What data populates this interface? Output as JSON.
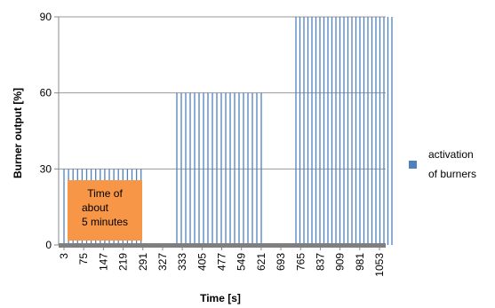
{
  "chart_data": {
    "type": "bar",
    "xlabel": "Time [s]",
    "ylabel": "Burner output [%]",
    "ylim": [
      0,
      90
    ],
    "yticks": [
      "0",
      "30",
      "60",
      "90"
    ],
    "x_tick_labels": [
      "3",
      "75",
      "147",
      "219",
      "291",
      "327",
      "333",
      "405",
      "477",
      "549",
      "621",
      "693",
      "765",
      "837",
      "909",
      "981",
      "1053"
    ],
    "grid": true,
    "legend_position": "right",
    "series": [
      {
        "name": "activation of burners",
        "color": "#4f81bd",
        "values": [
          30,
          30,
          30,
          30,
          30,
          30,
          30,
          30,
          30,
          30,
          30,
          30,
          30,
          30,
          30,
          30,
          30,
          30,
          60,
          60,
          60,
          60,
          60,
          60,
          60,
          60,
          60,
          60,
          60,
          60,
          60,
          60,
          60,
          60,
          60,
          60,
          60,
          60,
          90,
          90,
          90,
          90,
          90,
          90,
          90,
          90,
          90,
          90,
          90,
          90,
          90,
          90,
          90,
          90,
          90,
          90,
          90,
          90,
          90,
          90,
          90,
          90,
          90
        ]
      }
    ],
    "legend": {
      "line1": "activation",
      "line2": "of burners"
    },
    "annotation": {
      "line1": "Time of",
      "line2": "about",
      "line3": "5 minutes",
      "color": "#f79646"
    }
  }
}
